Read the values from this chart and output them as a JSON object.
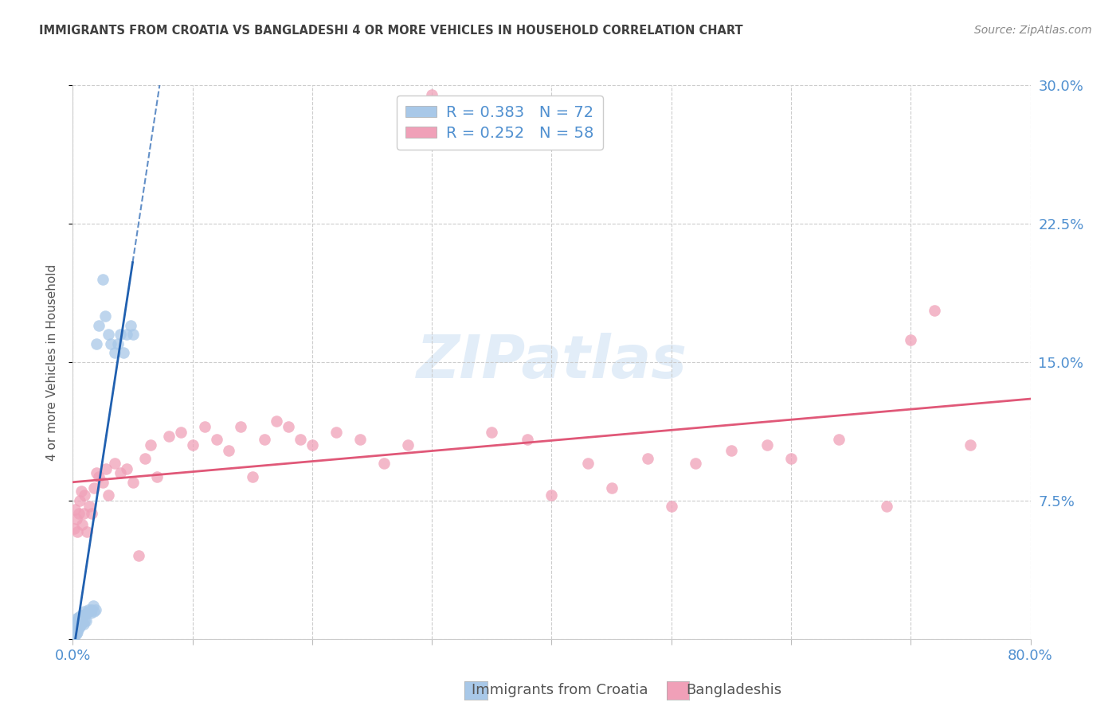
{
  "title": "IMMIGRANTS FROM CROATIA VS BANGLADESHI 4 OR MORE VEHICLES IN HOUSEHOLD CORRELATION CHART",
  "source": "Source: ZipAtlas.com",
  "ylabel": "4 or more Vehicles in Household",
  "legend_r": [
    0.383,
    0.252
  ],
  "legend_n": [
    72,
    58
  ],
  "blue_color": "#a8c8e8",
  "pink_color": "#f0a0b8",
  "blue_line_color": "#2060b0",
  "pink_line_color": "#e05878",
  "axis_label_color": "#5090d0",
  "title_color": "#404040",
  "source_color": "#888888",
  "watermark": "ZIPatlas",
  "xmin": 0.0,
  "xmax": 0.8,
  "ymin": 0.0,
  "ymax": 0.3,
  "blue_x": [
    0.0005,
    0.0008,
    0.001,
    0.001,
    0.001,
    0.001,
    0.0012,
    0.0012,
    0.0013,
    0.0015,
    0.0015,
    0.0015,
    0.0015,
    0.0018,
    0.002,
    0.002,
    0.002,
    0.002,
    0.0022,
    0.0025,
    0.0025,
    0.0025,
    0.003,
    0.003,
    0.003,
    0.003,
    0.003,
    0.0032,
    0.0035,
    0.0035,
    0.004,
    0.004,
    0.004,
    0.004,
    0.0042,
    0.0045,
    0.005,
    0.005,
    0.005,
    0.0055,
    0.006,
    0.006,
    0.007,
    0.007,
    0.008,
    0.008,
    0.009,
    0.009,
    0.01,
    0.01,
    0.011,
    0.012,
    0.013,
    0.014,
    0.015,
    0.016,
    0.017,
    0.018,
    0.019,
    0.02,
    0.022,
    0.025,
    0.027,
    0.03,
    0.032,
    0.035,
    0.038,
    0.04,
    0.042,
    0.045,
    0.048,
    0.05
  ],
  "blue_y": [
    0.003,
    0.001,
    0.002,
    0.003,
    0.004,
    0.006,
    0.003,
    0.005,
    0.006,
    0.002,
    0.004,
    0.006,
    0.008,
    0.004,
    0.003,
    0.005,
    0.007,
    0.009,
    0.005,
    0.004,
    0.007,
    0.009,
    0.003,
    0.005,
    0.007,
    0.009,
    0.011,
    0.006,
    0.005,
    0.009,
    0.004,
    0.006,
    0.008,
    0.01,
    0.007,
    0.009,
    0.006,
    0.008,
    0.012,
    0.009,
    0.007,
    0.011,
    0.008,
    0.013,
    0.009,
    0.011,
    0.008,
    0.013,
    0.01,
    0.015,
    0.01,
    0.014,
    0.016,
    0.015,
    0.014,
    0.016,
    0.018,
    0.015,
    0.016,
    0.16,
    0.17,
    0.195,
    0.175,
    0.165,
    0.16,
    0.155,
    0.16,
    0.165,
    0.155,
    0.165,
    0.17,
    0.165
  ],
  "pink_x": [
    0.001,
    0.002,
    0.003,
    0.004,
    0.005,
    0.006,
    0.007,
    0.008,
    0.009,
    0.01,
    0.012,
    0.014,
    0.016,
    0.018,
    0.02,
    0.022,
    0.025,
    0.028,
    0.03,
    0.035,
    0.04,
    0.045,
    0.05,
    0.055,
    0.06,
    0.065,
    0.07,
    0.08,
    0.09,
    0.1,
    0.11,
    0.12,
    0.13,
    0.14,
    0.15,
    0.16,
    0.17,
    0.18,
    0.19,
    0.2,
    0.22,
    0.24,
    0.26,
    0.28,
    0.3,
    0.35,
    0.38,
    0.4,
    0.43,
    0.45,
    0.48,
    0.5,
    0.52,
    0.55,
    0.58,
    0.6,
    0.64,
    0.68,
    0.7,
    0.72,
    0.75
  ],
  "pink_y": [
    0.06,
    0.07,
    0.065,
    0.058,
    0.068,
    0.075,
    0.08,
    0.062,
    0.068,
    0.078,
    0.058,
    0.072,
    0.068,
    0.082,
    0.09,
    0.088,
    0.085,
    0.092,
    0.078,
    0.095,
    0.09,
    0.092,
    0.085,
    0.045,
    0.098,
    0.105,
    0.088,
    0.11,
    0.112,
    0.105,
    0.115,
    0.108,
    0.102,
    0.115,
    0.088,
    0.108,
    0.118,
    0.115,
    0.108,
    0.105,
    0.112,
    0.108,
    0.095,
    0.105,
    0.295,
    0.112,
    0.108,
    0.078,
    0.095,
    0.082,
    0.098,
    0.072,
    0.095,
    0.102,
    0.105,
    0.098,
    0.108,
    0.072,
    0.162,
    0.178,
    0.105
  ]
}
